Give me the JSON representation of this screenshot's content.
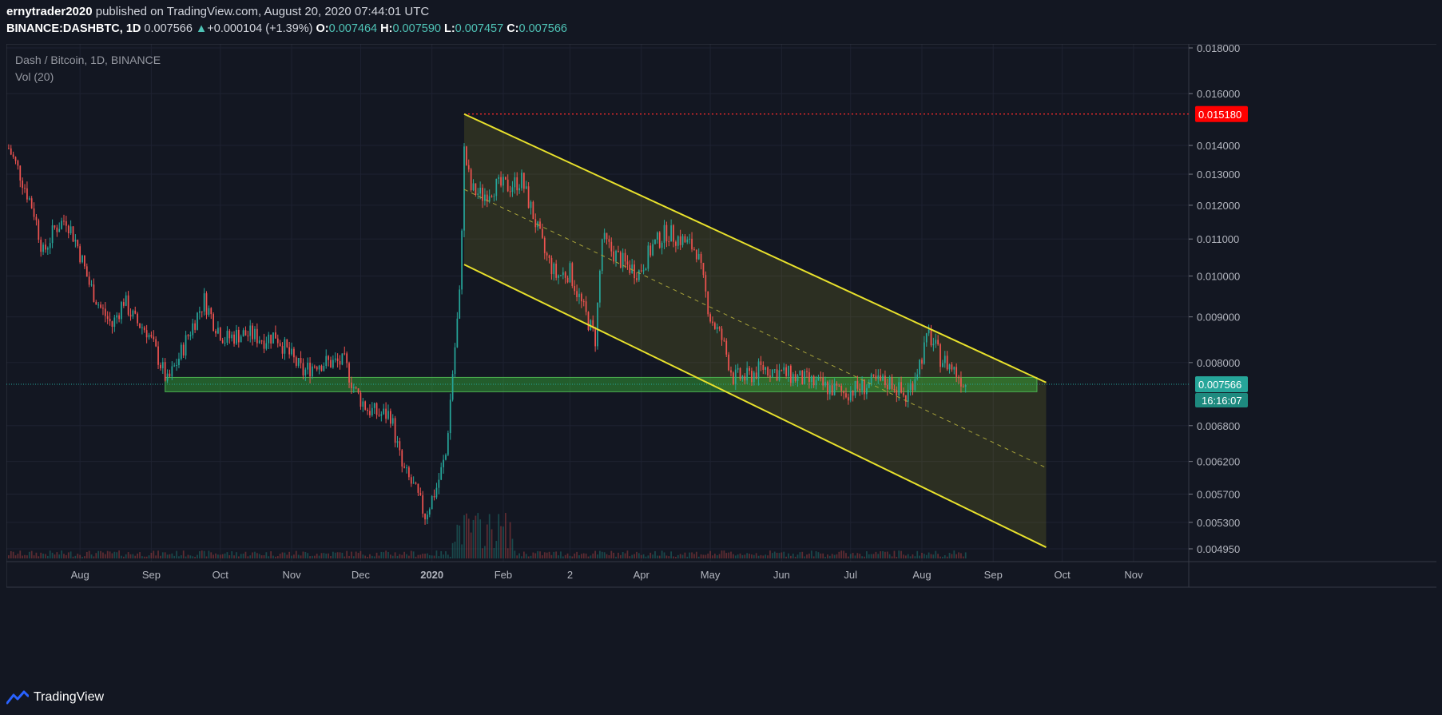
{
  "header": {
    "author": "ernytrader2020",
    "published_text": "published on TradingView.com, August 20, 2020 07:44:01 UTC",
    "symbol": "BINANCE:DASHBTC, 1D",
    "last_price": "0.007566",
    "change_arrow": "▲",
    "change": "+0.000104 (+1.39%)",
    "open_label": "O:",
    "open": "0.007464",
    "high_label": "H:",
    "high": "0.007590",
    "low_label": "L:",
    "low": "0.007457",
    "close_label": "C:",
    "close": "0.007566"
  },
  "legend": {
    "title": "Dash / Bitcoin, 1D, BINANCE",
    "volume": "Vol (20)"
  },
  "footer": {
    "brand": "TradingView"
  },
  "colors": {
    "background": "#131722",
    "up": "#26a69a",
    "down": "#ef5350",
    "channel_line": "#e8e12c",
    "channel_fill": "rgba(180,175,40,0.16)",
    "support_fill": "rgba(60,200,60,0.40)",
    "resistance": "#ff2b2b",
    "grid": "#1e2231",
    "axis_text": "#b2b5be"
  },
  "chart_data": {
    "type": "candlestick",
    "y_axis_ticks": [
      "0.018000",
      "0.016000",
      "0.015180",
      "0.014000",
      "0.013000",
      "0.012000",
      "0.011000",
      "0.010000",
      "0.009000",
      "0.008000",
      "0.007566",
      "0.006800",
      "0.006200",
      "0.005700",
      "0.005300",
      "0.004950"
    ],
    "x_axis_ticks": [
      "Aug",
      "Sep",
      "Oct",
      "Nov",
      "Dec",
      "2020",
      "Feb",
      "2",
      "Apr",
      "May",
      "Jun",
      "Jul",
      "Aug",
      "Sep",
      "Oct",
      "Nov"
    ],
    "ylim": [
      0.0048,
      0.0182
    ],
    "log_scale": true,
    "price_label": "0.007566",
    "countdown": "16:16:07",
    "resistance_label": "0.015180",
    "approximate_closes": [
      [
        "2019-07-01",
        0.0139
      ],
      [
        "2019-07-06",
        0.013
      ],
      [
        "2019-07-12",
        0.0118
      ],
      [
        "2019-07-16",
        0.0106
      ],
      [
        "2019-07-21",
        0.0113
      ],
      [
        "2019-07-26",
        0.0116
      ],
      [
        "2019-07-31",
        0.0108
      ],
      [
        "2019-08-05",
        0.0098
      ],
      [
        "2019-08-10",
        0.0092
      ],
      [
        "2019-08-15",
        0.0088
      ],
      [
        "2019-08-20",
        0.0094
      ],
      [
        "2019-08-25",
        0.0089
      ],
      [
        "2019-08-30",
        0.0087
      ],
      [
        "2019-09-04",
        0.0081
      ],
      [
        "2019-09-08",
        0.0076
      ],
      [
        "2019-09-13",
        0.0081
      ],
      [
        "2019-09-18",
        0.0087
      ],
      [
        "2019-09-24",
        0.0094
      ],
      [
        "2019-09-28",
        0.0089
      ],
      [
        "2019-10-03",
        0.0085
      ],
      [
        "2019-10-09",
        0.0086
      ],
      [
        "2019-10-14",
        0.0086
      ],
      [
        "2019-10-20",
        0.0085
      ],
      [
        "2019-10-25",
        0.0086
      ],
      [
        "2019-11-01",
        0.0081
      ],
      [
        "2019-11-06",
        0.0078
      ],
      [
        "2019-11-12",
        0.008
      ],
      [
        "2019-11-17",
        0.008
      ],
      [
        "2019-11-24",
        0.008
      ],
      [
        "2019-11-29",
        0.0074
      ],
      [
        "2019-12-04",
        0.0071
      ],
      [
        "2019-12-09",
        0.007
      ],
      [
        "2019-12-14",
        0.007
      ],
      [
        "2019-12-19",
        0.0061
      ],
      [
        "2019-12-24",
        0.0058
      ],
      [
        "2019-12-29",
        0.0054
      ],
      [
        "2020-01-03",
        0.0058
      ],
      [
        "2020-01-07",
        0.0063
      ],
      [
        "2020-01-10",
        0.0078
      ],
      [
        "2020-01-13",
        0.0095
      ],
      [
        "2020-01-15",
        0.0138
      ],
      [
        "2020-01-18",
        0.0125
      ],
      [
        "2020-01-23",
        0.0123
      ],
      [
        "2020-01-28",
        0.0126
      ],
      [
        "2020-02-03",
        0.0126
      ],
      [
        "2020-02-09",
        0.0128
      ],
      [
        "2020-02-14",
        0.0117
      ],
      [
        "2020-02-19",
        0.0106
      ],
      [
        "2020-02-24",
        0.01
      ],
      [
        "2020-03-01",
        0.0101
      ],
      [
        "2020-03-06",
        0.0093
      ],
      [
        "2020-03-12",
        0.0085
      ],
      [
        "2020-03-15",
        0.011
      ],
      [
        "2020-03-20",
        0.0106
      ],
      [
        "2020-03-25",
        0.0103
      ],
      [
        "2020-03-31",
        0.0101
      ],
      [
        "2020-04-06",
        0.0108
      ],
      [
        "2020-04-12",
        0.0112
      ],
      [
        "2020-04-18",
        0.011
      ],
      [
        "2020-04-25",
        0.0107
      ],
      [
        "2020-05-01",
        0.009
      ],
      [
        "2020-05-06",
        0.0085
      ],
      [
        "2020-05-11",
        0.0077
      ],
      [
        "2020-05-17",
        0.0077
      ],
      [
        "2020-05-24",
        0.0079
      ],
      [
        "2020-05-31",
        0.0078
      ],
      [
        "2020-06-07",
        0.0077
      ],
      [
        "2020-06-14",
        0.0076
      ],
      [
        "2020-06-21",
        0.0075
      ],
      [
        "2020-06-28",
        0.0074
      ],
      [
        "2020-07-05",
        0.0075
      ],
      [
        "2020-07-12",
        0.0076
      ],
      [
        "2020-07-19",
        0.0076
      ],
      [
        "2020-07-25",
        0.0073
      ],
      [
        "2020-07-31",
        0.008
      ],
      [
        "2020-08-04",
        0.0086
      ],
      [
        "2020-08-09",
        0.0081
      ],
      [
        "2020-08-14",
        0.0079
      ],
      [
        "2020-08-20",
        0.007566
      ]
    ],
    "channel": {
      "upper": [
        [
          "2020-01-15",
          0.01518
        ],
        [
          "2020-09-24",
          0.0076
        ]
      ],
      "lower": [
        [
          "2020-01-15",
          0.0103
        ],
        [
          "2020-09-24",
          0.00497
        ]
      ],
      "mid": [
        [
          "2020-01-15",
          0.0125
        ],
        [
          "2020-09-24",
          0.0061
        ]
      ]
    },
    "support_zone": {
      "from": "2019-09-07",
      "to": "2020-09-20",
      "low": 0.00742,
      "high": 0.0077
    },
    "resistance_level": 0.01518
  }
}
